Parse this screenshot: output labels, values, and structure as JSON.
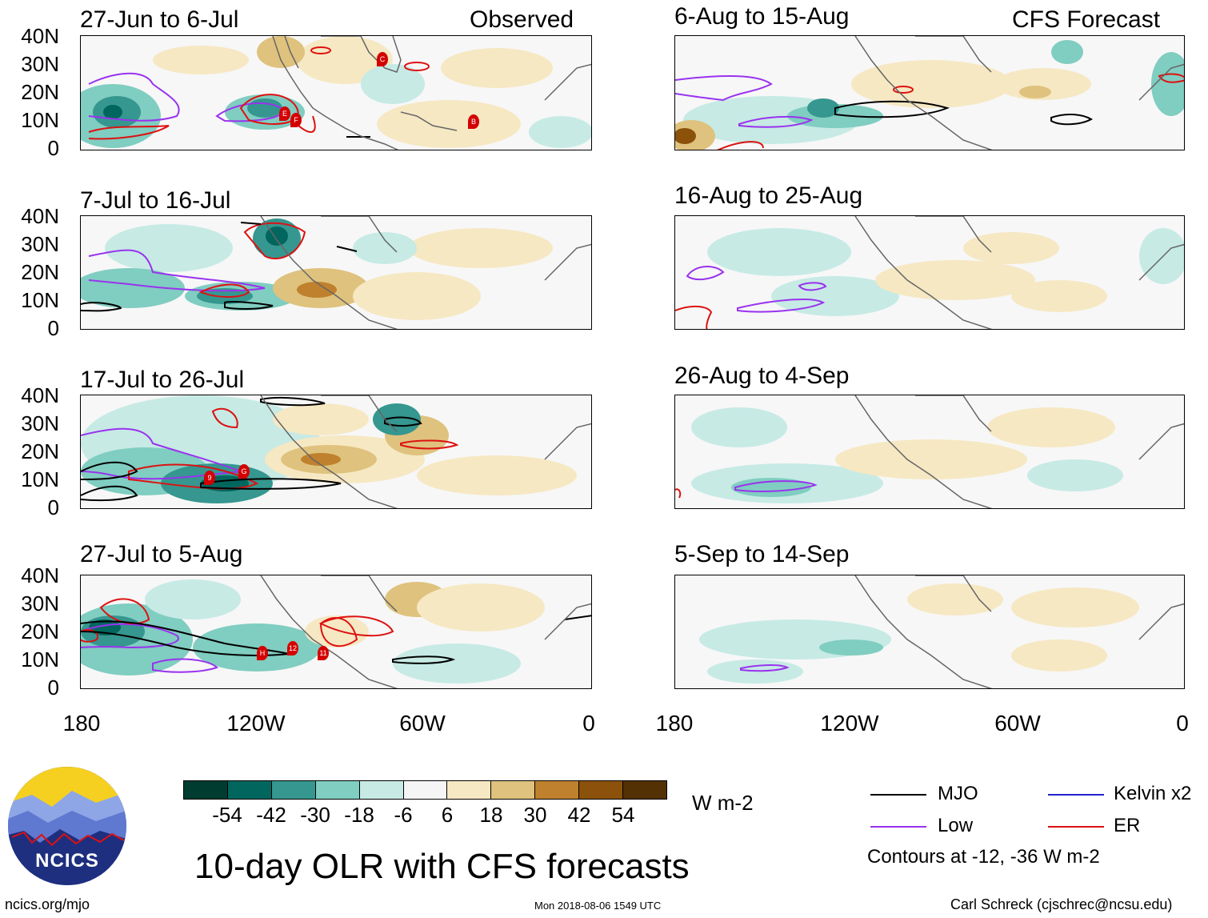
{
  "left_header": "Observed",
  "right_header": "CFS Forecast",
  "panels": {
    "p1": "27-Jun to 6-Jul",
    "p2": "7-Jul to 16-Jul",
    "p3": "17-Jul to 26-Jul",
    "p4": "27-Jul to 5-Aug",
    "p5": "6-Aug to 15-Aug",
    "p6": "16-Aug to 25-Aug",
    "p7": "26-Aug to 4-Sep",
    "p8": "5-Sep to 14-Sep"
  },
  "y_ticks": [
    "40N",
    "30N",
    "20N",
    "10N",
    "0"
  ],
  "x_ticks": [
    "180",
    "120W",
    "60W",
    "0"
  ],
  "colorbar": {
    "labels": [
      "-54",
      "-42",
      "-30",
      "-18",
      "-6",
      "6",
      "18",
      "30",
      "42",
      "54"
    ],
    "colors": [
      "#003c30",
      "#01665e",
      "#35978f",
      "#80cdc1",
      "#c7eae5",
      "#f5f5f5",
      "#f6e8c3",
      "#dfc27d",
      "#bf812d",
      "#8c510a",
      "#543005"
    ],
    "units": "W m-2"
  },
  "legend": {
    "mjo": "MJO",
    "kelvin": "Kelvin x2",
    "low": "Low",
    "er": "ER",
    "contours": "Contours at -12, -36 W m-2",
    "colors": {
      "mjo": "#000000",
      "kelvin": "#2222cc",
      "low": "#9933ee",
      "er": "#dd1111"
    }
  },
  "storm_labels": {
    "p1": [
      "C",
      "E",
      "F",
      "B"
    ],
    "p3": [
      "9",
      "G"
    ],
    "p4": [
      "H",
      "12",
      "11"
    ]
  },
  "logo_text": "NCICS",
  "main_title": "10-day OLR with CFS forecasts",
  "footer": {
    "left": "ncics.org/mjo",
    "center": "Mon 2018-08-06 1549 UTC",
    "right": "Carl Schreck (cjschrec@ncsu.edu)"
  }
}
